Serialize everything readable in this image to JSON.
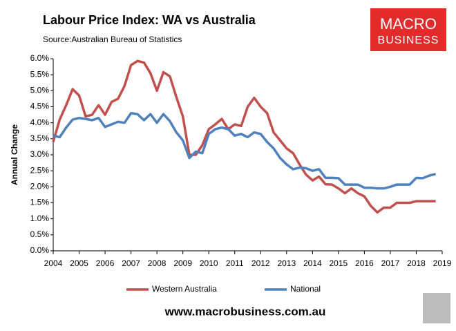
{
  "chart_data": {
    "type": "line",
    "title": "Labour Price Index: WA vs Australia",
    "subtitle": "Source:Australian Bureau of Statistics",
    "ylabel": "Annual Change",
    "logo": {
      "line1": "MACRO",
      "line2": "BUSINESS"
    },
    "website": "www.macrobusiness.com.au",
    "x": [
      2004,
      2004.25,
      2004.5,
      2004.75,
      2005,
      2005.25,
      2005.5,
      2005.75,
      2006,
      2006.25,
      2006.5,
      2006.75,
      2007,
      2007.25,
      2007.5,
      2007.75,
      2008,
      2008.25,
      2008.5,
      2008.75,
      2009,
      2009.25,
      2009.5,
      2009.75,
      2010,
      2010.25,
      2010.5,
      2010.75,
      2011,
      2011.25,
      2011.5,
      2011.75,
      2012,
      2012.25,
      2012.5,
      2012.75,
      2013,
      2013.25,
      2013.5,
      2013.75,
      2014,
      2014.25,
      2014.5,
      2014.75,
      2015,
      2015.25,
      2015.5,
      2015.75,
      2016,
      2016.25,
      2016.5,
      2016.75,
      2017,
      2017.25,
      2017.5,
      2017.75,
      2018,
      2018.25,
      2018.5,
      2018.75
    ],
    "series": [
      {
        "name": "Western Australia",
        "color": "#c0504d",
        "values": [
          3.4,
          4.1,
          4.55,
          5.05,
          4.85,
          4.2,
          4.25,
          4.55,
          4.25,
          4.65,
          4.75,
          5.15,
          5.8,
          5.93,
          5.88,
          5.55,
          5.0,
          5.58,
          5.45,
          4.8,
          4.2,
          3.0,
          3.0,
          3.3,
          3.8,
          3.95,
          4.12,
          3.8,
          3.95,
          3.9,
          4.5,
          4.78,
          4.5,
          4.3,
          3.7,
          3.45,
          3.2,
          3.05,
          2.7,
          2.38,
          2.2,
          2.32,
          2.08,
          2.07,
          1.95,
          1.8,
          1.95,
          1.8,
          1.7,
          1.4,
          1.2,
          1.35,
          1.35,
          1.5,
          1.5,
          1.5,
          1.55,
          1.55,
          1.55,
          1.55
        ]
      },
      {
        "name": "National",
        "color": "#4f81bd",
        "values": [
          3.6,
          3.55,
          3.85,
          4.1,
          4.15,
          4.12,
          4.08,
          4.15,
          3.87,
          3.95,
          4.03,
          4.0,
          4.3,
          4.27,
          4.08,
          4.27,
          4.0,
          4.27,
          4.05,
          3.7,
          3.45,
          2.9,
          3.1,
          3.05,
          3.65,
          3.8,
          3.85,
          3.8,
          3.6,
          3.65,
          3.55,
          3.7,
          3.65,
          3.4,
          3.2,
          2.9,
          2.7,
          2.55,
          2.6,
          2.58,
          2.5,
          2.55,
          2.28,
          2.28,
          2.27,
          2.07,
          2.07,
          2.07,
          1.97,
          1.97,
          1.95,
          1.95,
          2.0,
          2.07,
          2.07,
          2.07,
          2.28,
          2.27,
          2.35,
          2.4
        ]
      }
    ],
    "xlim": [
      2004,
      2019
    ],
    "xticks": [
      2004,
      2005,
      2006,
      2007,
      2008,
      2009,
      2010,
      2011,
      2012,
      2013,
      2014,
      2015,
      2016,
      2017,
      2018,
      2019
    ],
    "ylim": [
      0,
      6
    ],
    "yticks": [
      {
        "value": 0,
        "label": "0.0%"
      },
      {
        "value": 0.5,
        "label": "0.5%"
      },
      {
        "value": 1,
        "label": "1.0%"
      },
      {
        "value": 1.5,
        "label": "1.5%"
      },
      {
        "value": 2,
        "label": "2.0%"
      },
      {
        "value": 2.5,
        "label": "2.5%"
      },
      {
        "value": 3,
        "label": "3.0%"
      },
      {
        "value": 3.5,
        "label": "3.5%"
      },
      {
        "value": 4,
        "label": "4.0%"
      },
      {
        "value": 4.5,
        "label": "4.5%"
      },
      {
        "value": 5,
        "label": "5.0%"
      },
      {
        "value": 5.5,
        "label": "5.5%"
      },
      {
        "value": 6,
        "label": "6.0%"
      }
    ],
    "grid": false,
    "legend": "bottom"
  }
}
